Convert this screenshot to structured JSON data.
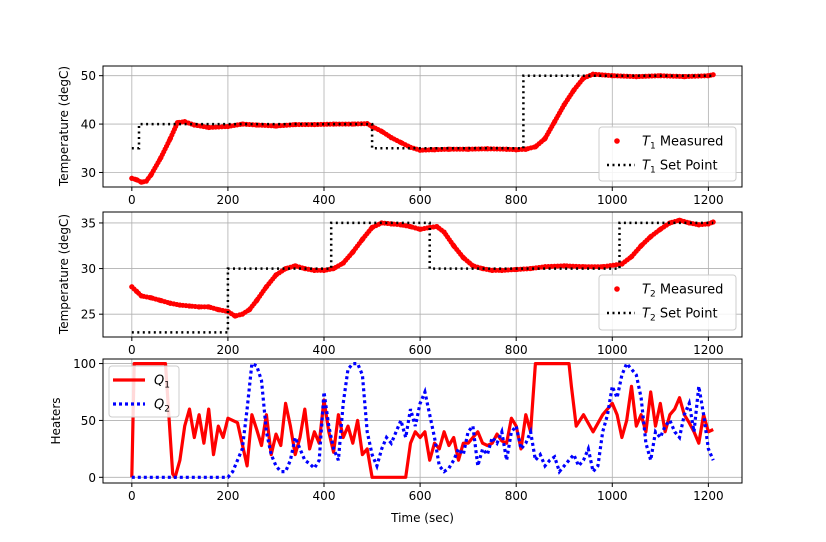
{
  "chart_data": [
    {
      "type": "scatter",
      "ylabel": "Temperature (degC)",
      "xlim": [
        -60,
        1270
      ],
      "ylim": [
        27,
        52
      ],
      "xticks": [
        0,
        200,
        400,
        600,
        800,
        1000,
        1200
      ],
      "yticks": [
        30,
        40,
        50
      ],
      "grid": true,
      "legend_position": "lower-right",
      "legend": [
        {
          "base": "T",
          "sub": "1",
          "rest": " Measured"
        },
        {
          "base": "T",
          "sub": "1",
          "rest": " Set Point"
        }
      ],
      "colors": {
        "measured": "#ff0000",
        "setpoint": "#000000"
      },
      "series": [
        {
          "name": "T1 Measured",
          "style": "points",
          "x": [
            0,
            10,
            20,
            30,
            40,
            60,
            80,
            95,
            110,
            130,
            160,
            200,
            230,
            260,
            300,
            340,
            380,
            420,
            460,
            490,
            500,
            520,
            540,
            560,
            580,
            600,
            630,
            660,
            700,
            740,
            780,
            800,
            820,
            840,
            860,
            880,
            900,
            920,
            940,
            960,
            1000,
            1050,
            1100,
            1150,
            1200,
            1210
          ],
          "values": [
            28.8,
            28.5,
            28.0,
            28.2,
            29.5,
            33.0,
            37.0,
            40.3,
            40.5,
            39.8,
            39.3,
            39.5,
            40.0,
            39.8,
            39.6,
            39.9,
            39.9,
            40.0,
            40.0,
            40.1,
            39.5,
            38.5,
            37.2,
            36.2,
            35.2,
            34.6,
            34.7,
            34.8,
            34.8,
            34.9,
            34.8,
            34.7,
            34.8,
            35.3,
            37.0,
            40.5,
            44.0,
            47.0,
            49.5,
            50.3,
            50.0,
            49.8,
            50.0,
            49.8,
            50.0,
            50.2
          ]
        },
        {
          "name": "T1 Set Point",
          "style": "dotted-line",
          "x": [
            0,
            15,
            15,
            500,
            500,
            815,
            815,
            1210
          ],
          "values": [
            35,
            35,
            40,
            40,
            35,
            35,
            50,
            50
          ]
        }
      ]
    },
    {
      "type": "scatter",
      "ylabel": "Temperature (degC)",
      "xlim": [
        -60,
        1270
      ],
      "ylim": [
        22.5,
        36.2
      ],
      "xticks": [
        0,
        200,
        400,
        600,
        800,
        1000,
        1200
      ],
      "yticks": [
        25,
        30,
        35
      ],
      "grid": true,
      "legend_position": "lower-right",
      "legend": [
        {
          "base": "T",
          "sub": "2",
          "rest": " Measured"
        },
        {
          "base": "T",
          "sub": "2",
          "rest": " Set Point"
        }
      ],
      "colors": {
        "measured": "#ff0000",
        "setpoint": "#000000"
      },
      "series": [
        {
          "name": "T2 Measured",
          "style": "points",
          "x": [
            0,
            10,
            20,
            40,
            60,
            80,
            100,
            120,
            140,
            160,
            180,
            200,
            215,
            230,
            245,
            260,
            280,
            300,
            320,
            340,
            360,
            380,
            400,
            420,
            440,
            460,
            480,
            500,
            520,
            540,
            560,
            580,
            600,
            620,
            635,
            650,
            670,
            690,
            710,
            730,
            750,
            770,
            800,
            830,
            860,
            900,
            940,
            980,
            1020,
            1040,
            1060,
            1080,
            1100,
            1120,
            1140,
            1160,
            1180,
            1200,
            1210
          ],
          "values": [
            28.0,
            27.5,
            27.0,
            26.8,
            26.5,
            26.2,
            26.0,
            25.9,
            25.8,
            25.8,
            25.5,
            25.3,
            24.8,
            25.0,
            25.5,
            26.5,
            28.0,
            29.3,
            30.0,
            30.3,
            30.0,
            29.8,
            29.8,
            30.0,
            30.6,
            31.8,
            33.2,
            34.5,
            35.0,
            34.9,
            34.8,
            34.6,
            34.3,
            34.5,
            34.6,
            34.0,
            32.5,
            31.2,
            30.3,
            30.0,
            29.8,
            29.8,
            29.9,
            30.0,
            30.2,
            30.3,
            30.2,
            30.2,
            30.5,
            31.3,
            32.5,
            33.5,
            34.3,
            35.0,
            35.3,
            35.0,
            34.8,
            34.9,
            35.1
          ]
        },
        {
          "name": "T2 Set Point",
          "style": "dotted-line",
          "x": [
            0,
            200,
            200,
            415,
            415,
            620,
            620,
            1015,
            1015,
            1210
          ],
          "values": [
            23,
            23,
            30,
            30,
            35,
            35,
            30,
            30,
            35,
            35
          ]
        }
      ]
    },
    {
      "type": "line",
      "xlabel": "Time (sec)",
      "ylabel": "Heaters",
      "xlim": [
        -60,
        1270
      ],
      "ylim": [
        -5,
        104
      ],
      "xticks": [
        0,
        200,
        400,
        600,
        800,
        1000,
        1200
      ],
      "yticks": [
        0,
        50,
        100
      ],
      "grid": true,
      "legend_position": "upper-left",
      "legend": [
        {
          "base": "Q",
          "sub": "1",
          "rest": ""
        },
        {
          "base": "Q",
          "sub": "2",
          "rest": ""
        }
      ],
      "colors": {
        "Q1": "#ff0000",
        "Q2": "#0000ff"
      },
      "series": [
        {
          "name": "Q1",
          "style": "solid",
          "x": [
            0,
            5,
            15,
            70,
            80,
            85,
            90,
            100,
            110,
            120,
            130,
            140,
            150,
            160,
            170,
            180,
            190,
            200,
            220,
            240,
            250,
            260,
            270,
            280,
            290,
            300,
            310,
            320,
            330,
            340,
            350,
            360,
            370,
            380,
            390,
            400,
            410,
            420,
            430,
            440,
            450,
            460,
            470,
            480,
            490,
            500,
            510,
            520,
            530,
            540,
            550,
            560,
            570,
            580,
            590,
            600,
            610,
            620,
            630,
            640,
            650,
            660,
            670,
            680,
            690,
            700,
            710,
            720,
            730,
            740,
            750,
            760,
            770,
            780,
            790,
            800,
            810,
            820,
            830,
            840,
            910,
            915,
            925,
            940,
            960,
            980,
            1000,
            1010,
            1020,
            1030,
            1040,
            1050,
            1060,
            1070,
            1080,
            1090,
            1100,
            1110,
            1120,
            1130,
            1140,
            1150,
            1160,
            1170,
            1180,
            1190,
            1200,
            1210
          ],
          "values": [
            0,
            100,
            100,
            100,
            35,
            3,
            0,
            15,
            45,
            60,
            35,
            55,
            30,
            60,
            20,
            45,
            35,
            52,
            48,
            10,
            55,
            42,
            28,
            55,
            20,
            38,
            28,
            65,
            45,
            20,
            35,
            60,
            25,
            40,
            30,
            68,
            40,
            22,
            55,
            35,
            45,
            30,
            50,
            20,
            25,
            0,
            0,
            0,
            0,
            0,
            0,
            0,
            0,
            30,
            40,
            35,
            40,
            15,
            30,
            25,
            40,
            28,
            35,
            15,
            30,
            30,
            35,
            40,
            30,
            28,
            30,
            38,
            32,
            30,
            52,
            45,
            25,
            55,
            40,
            100,
            100,
            80,
            45,
            55,
            40,
            55,
            65,
            55,
            35,
            50,
            80,
            45,
            55,
            40,
            75,
            45,
            65,
            40,
            55,
            60,
            70,
            55,
            48,
            40,
            30,
            55,
            40,
            42
          ]
        },
        {
          "name": "Q2",
          "style": "dotted",
          "x": [
            0,
            100,
            180,
            200,
            210,
            220,
            230,
            240,
            250,
            260,
            270,
            280,
            290,
            300,
            310,
            320,
            330,
            340,
            350,
            360,
            370,
            380,
            390,
            400,
            410,
            420,
            430,
            440,
            450,
            460,
            470,
            480,
            490,
            500,
            510,
            520,
            530,
            540,
            550,
            560,
            570,
            580,
            590,
            600,
            610,
            620,
            630,
            640,
            650,
            660,
            670,
            680,
            690,
            700,
            710,
            720,
            730,
            740,
            750,
            760,
            770,
            780,
            790,
            800,
            810,
            820,
            830,
            840,
            850,
            860,
            870,
            880,
            890,
            900,
            910,
            920,
            930,
            940,
            950,
            960,
            970,
            980,
            990,
            1000,
            1010,
            1020,
            1030,
            1040,
            1050,
            1060,
            1070,
            1080,
            1090,
            1100,
            1110,
            1120,
            1130,
            1140,
            1150,
            1160,
            1170,
            1180,
            1190,
            1200,
            1210
          ],
          "values": [
            0,
            0,
            0,
            0,
            5,
            15,
            25,
            60,
            100,
            98,
            85,
            40,
            20,
            10,
            5,
            5,
            15,
            35,
            25,
            15,
            12,
            8,
            15,
            75,
            45,
            25,
            15,
            65,
            95,
            100,
            100,
            90,
            40,
            20,
            10,
            25,
            35,
            30,
            40,
            50,
            35,
            60,
            45,
            65,
            75,
            55,
            35,
            10,
            5,
            8,
            15,
            25,
            20,
            40,
            45,
            10,
            25,
            20,
            35,
            30,
            40,
            15,
            40,
            45,
            25,
            30,
            40,
            15,
            20,
            10,
            15,
            18,
            5,
            10,
            15,
            20,
            10,
            15,
            25,
            5,
            10,
            40,
            55,
            80,
            70,
            90,
            100,
            95,
            90,
            70,
            30,
            15,
            40,
            35,
            45,
            50,
            40,
            35,
            55,
            65,
            40,
            80,
            55,
            25,
            15
          ]
        }
      ]
    }
  ]
}
